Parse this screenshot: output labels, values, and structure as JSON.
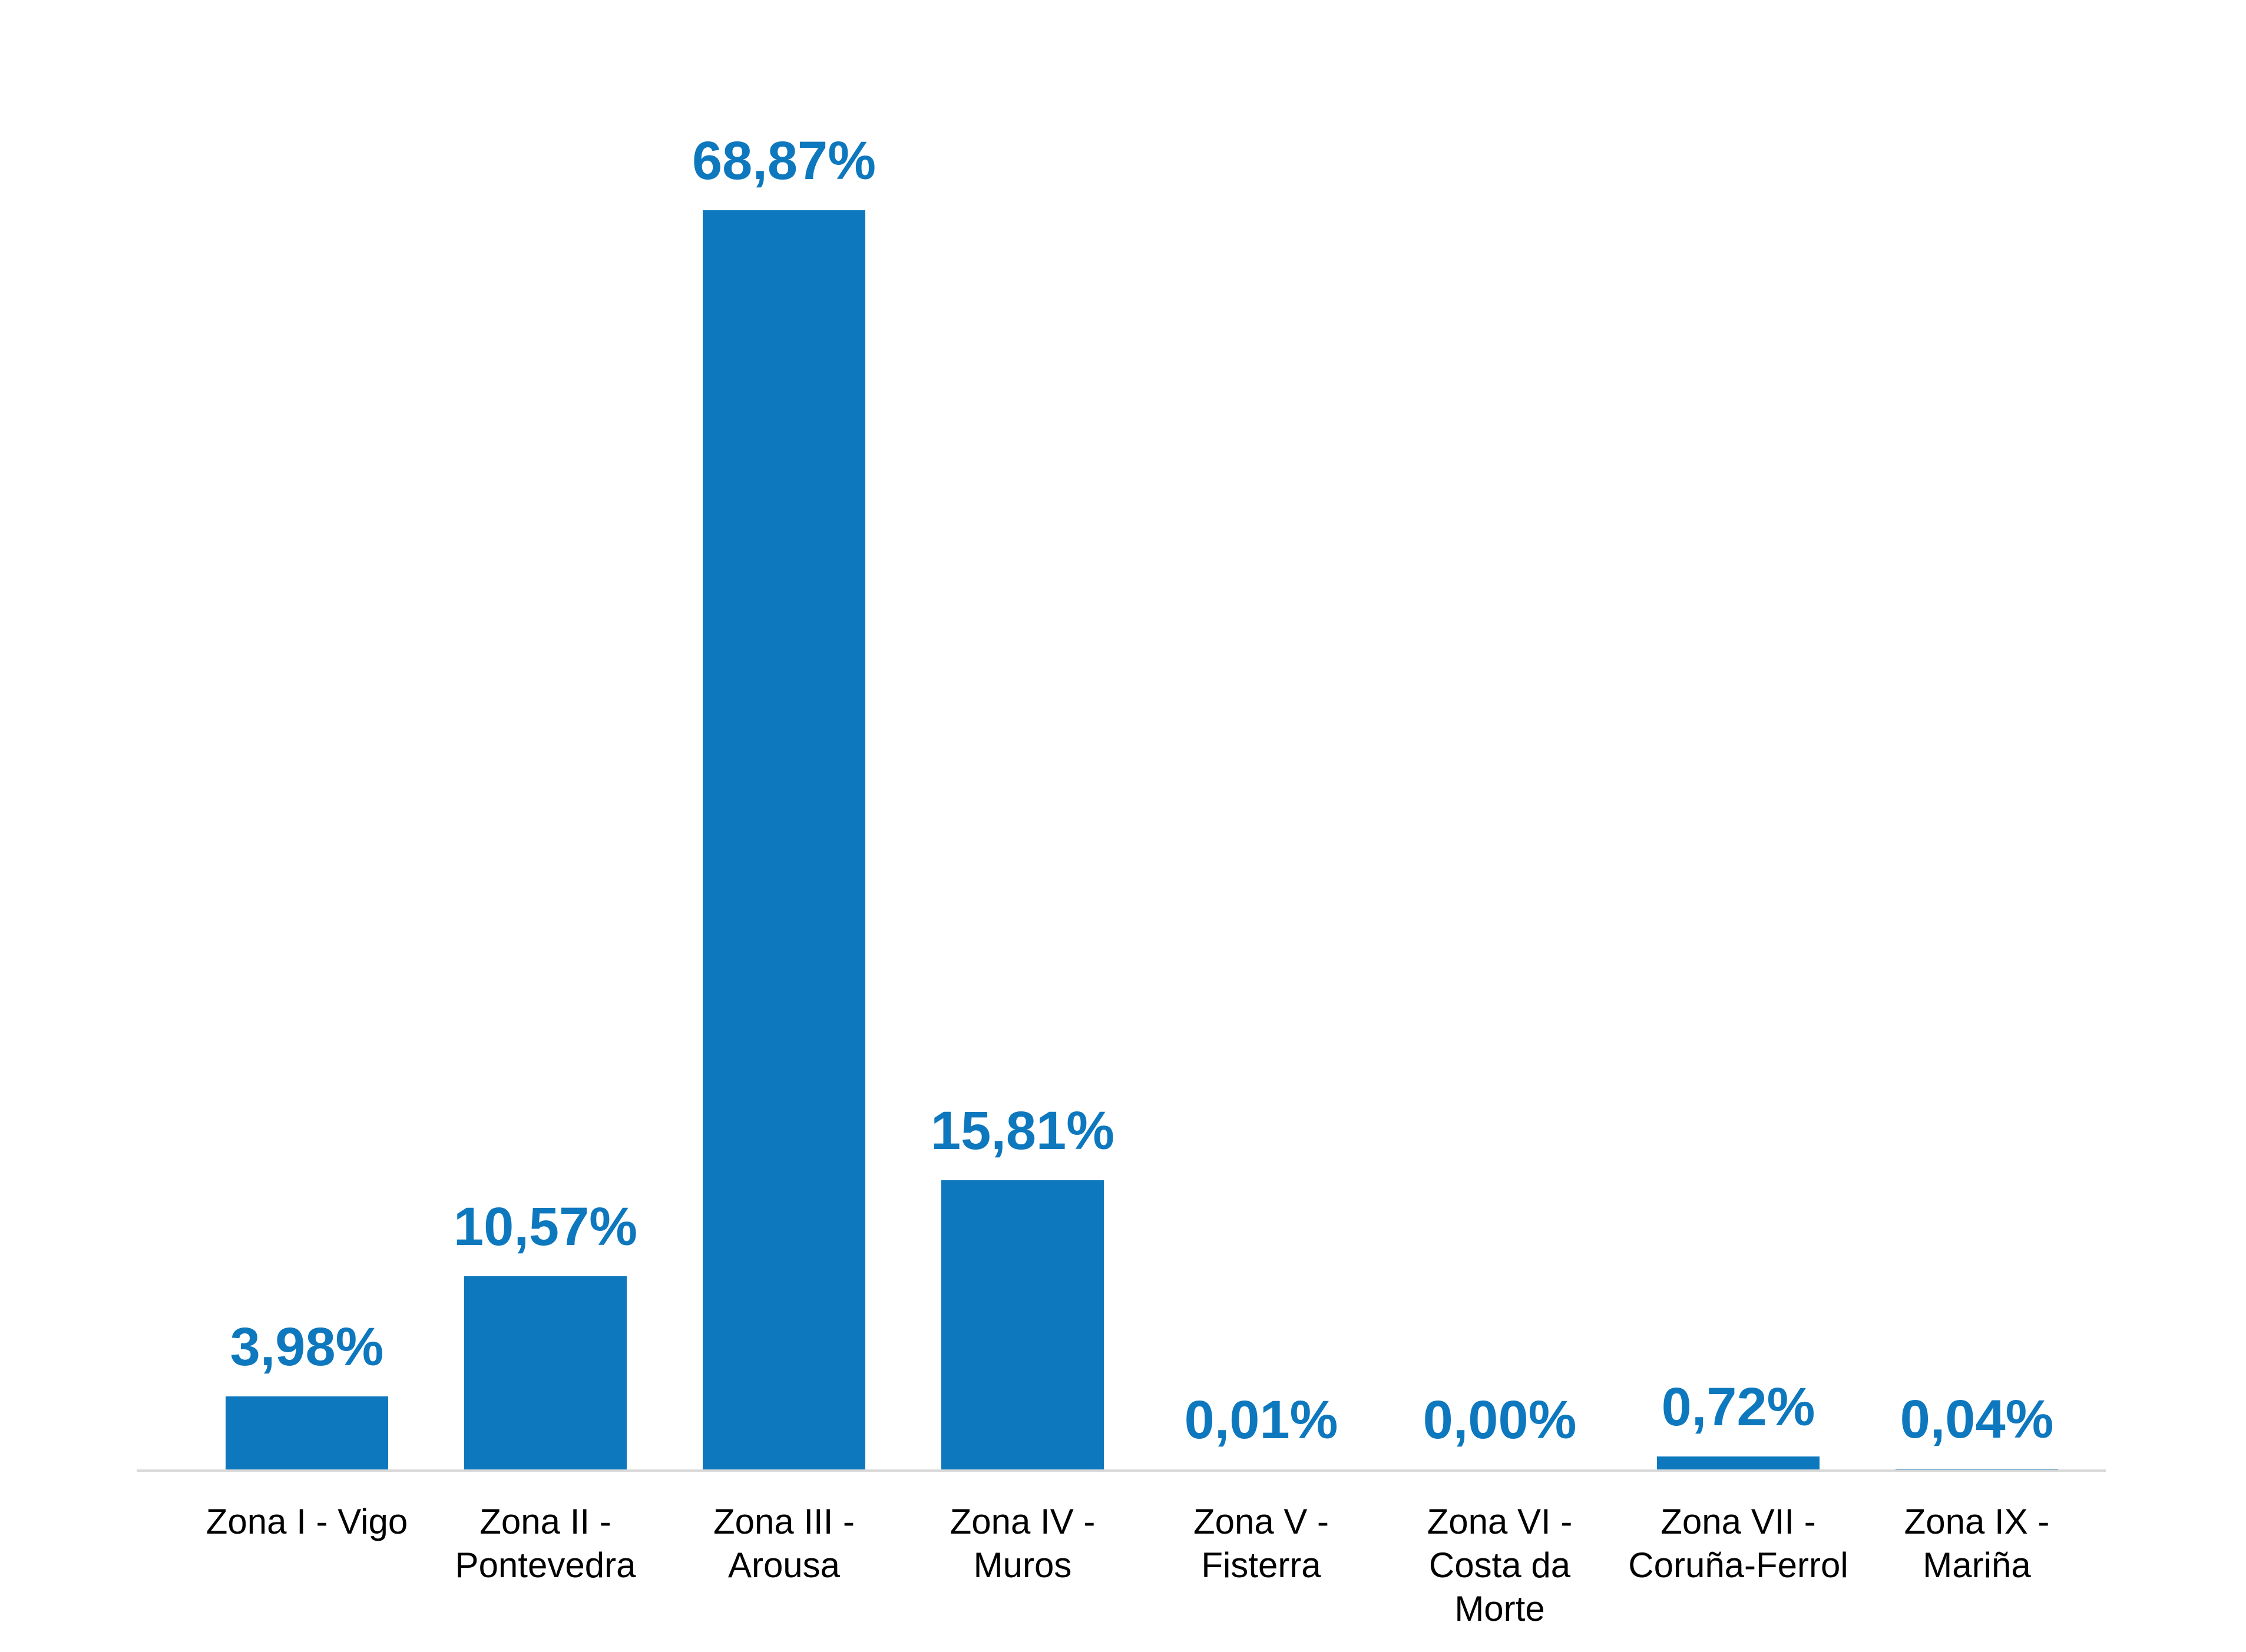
{
  "chart_data": {
    "type": "bar",
    "title": "",
    "xlabel": "",
    "ylabel": "",
    "categories": [
      "Zona I - Vigo",
      "Zona II - Pontevedra",
      "Zona III - Arousa",
      "Zona IV - Muros",
      "Zona V - Fisterra",
      "Zona VI - Costa da Morte",
      "Zona VII - Coruña-Ferrol",
      "Zona IX - Mariña"
    ],
    "category_lines": [
      [
        "Zona I - Vigo"
      ],
      [
        "Zona II -",
        "Pontevedra"
      ],
      [
        "Zona III -",
        "Arousa"
      ],
      [
        "Zona IV -",
        "Muros"
      ],
      [
        "Zona V -",
        "Fisterra"
      ],
      [
        "Zona VI -",
        "Costa da",
        "Morte"
      ],
      [
        "Zona VII -",
        "Coruña-Ferrol"
      ],
      [
        "Zona IX -",
        "Mariña"
      ]
    ],
    "values": [
      3.98,
      10.57,
      68.87,
      15.81,
      0.01,
      0.0,
      0.72,
      0.04
    ],
    "value_labels": [
      "3,98%",
      "10,57%",
      "68,87%",
      "15,81%",
      "0,01%",
      "0,00%",
      "0,72%",
      "0,04%"
    ],
    "ylim": [
      0,
      70
    ],
    "grid": false,
    "legend": false,
    "data_labels_position": "above-bars",
    "bar_color": "#0e78be",
    "value_label_color": "#0e78be",
    "category_label_color": "#000000",
    "axis_line_color": "#d9d9d9",
    "background_color": "#ffffff"
  }
}
